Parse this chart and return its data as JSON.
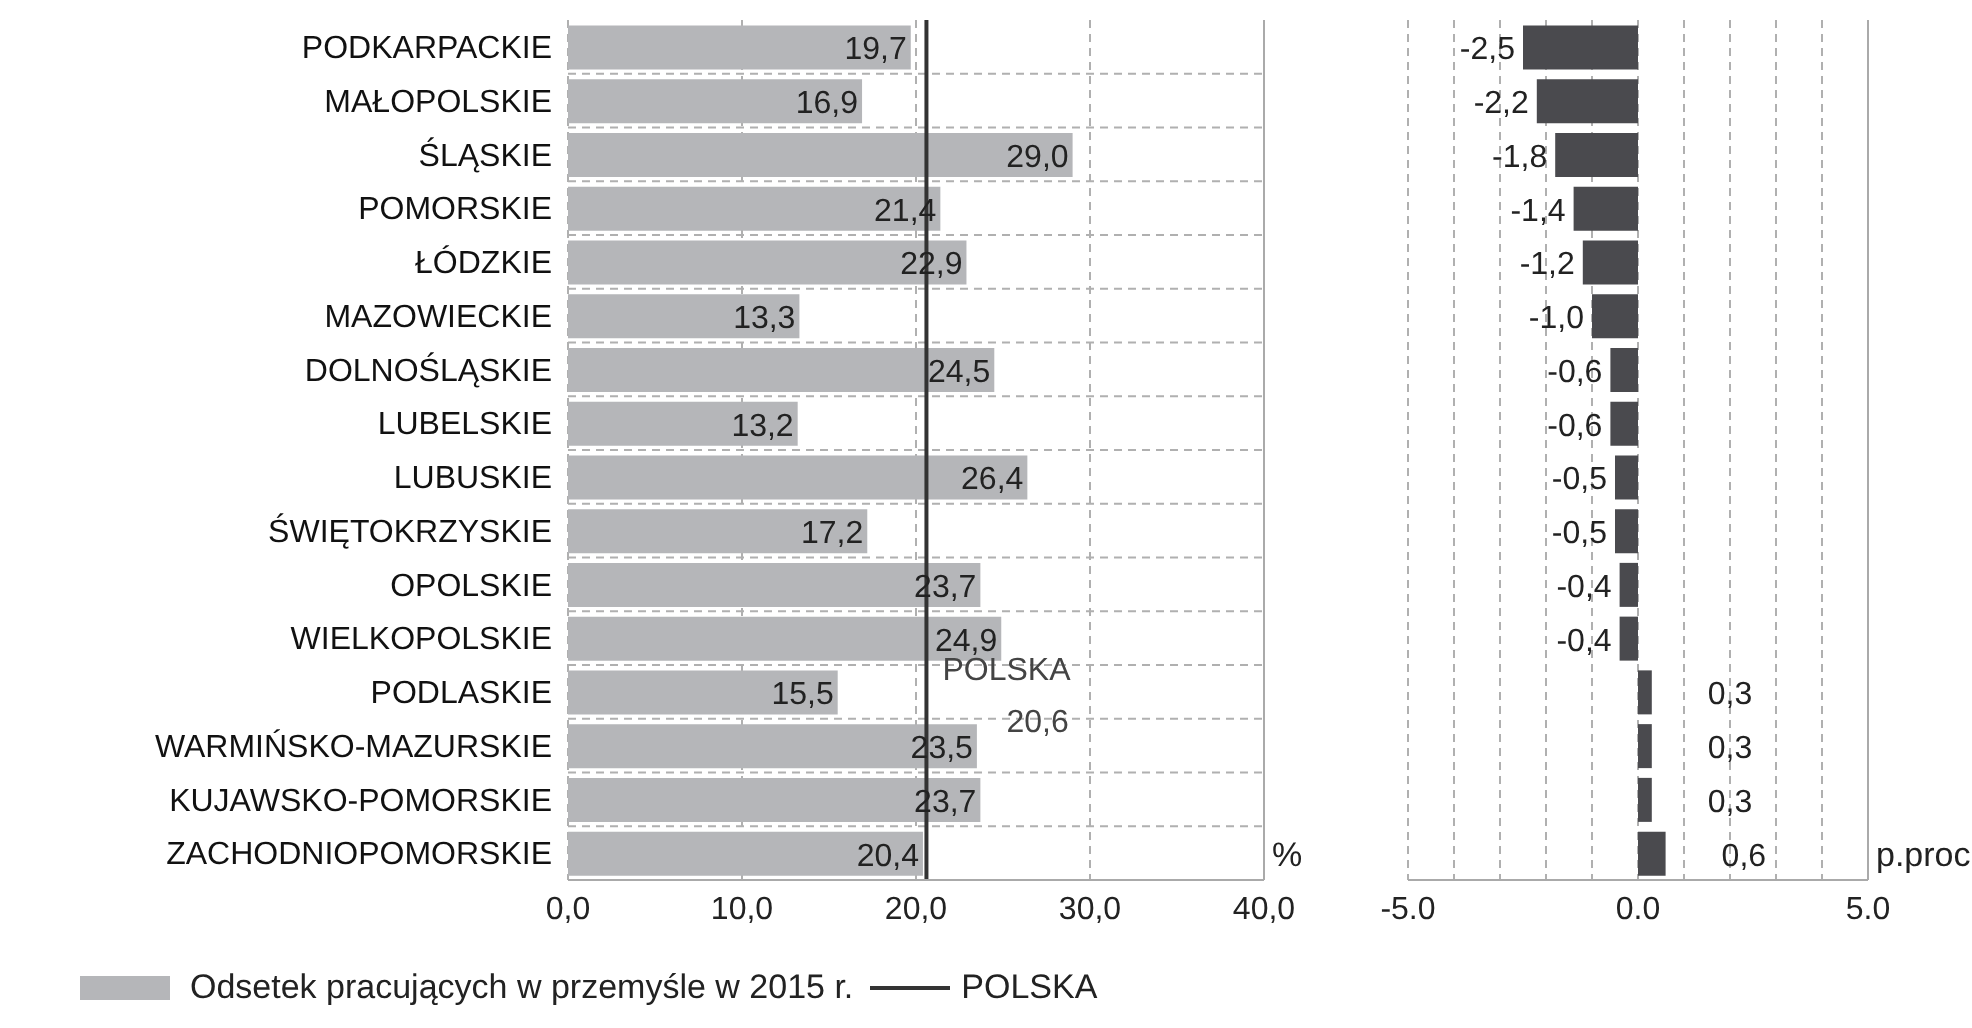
{
  "chart_data": [
    {
      "type": "bar",
      "orientation": "horizontal",
      "categories": [
        "PODKARPACKIE",
        "MAŁOPOLSKIE",
        "ŚLĄSKIE",
        "POMORSKIE",
        "ŁÓDZKIE",
        "MAZOWIECKIE",
        "DOLNOŚLĄSKIE",
        "LUBELSKIE",
        "LUBUSKIE",
        "ŚWIĘTOKRZYSKIE",
        "OPOLSKIE",
        "WIELKOPOLSKIE",
        "PODLASKIE",
        "WARMIŃSKO-MAZURSKIE",
        "KUJAWSKO-POMORSKIE",
        "ZACHODNIOPOMORSKIE"
      ],
      "series": [
        {
          "name": "Odsetek pracujących w przemyśle  w 2015 r.",
          "color": "#b5b6b9",
          "values": [
            19.7,
            16.9,
            29.0,
            21.4,
            22.9,
            13.3,
            24.5,
            13.2,
            26.4,
            17.2,
            23.7,
            24.9,
            15.5,
            23.5,
            23.7,
            20.4
          ],
          "value_labels": [
            "19,7",
            "16,9",
            "29,0",
            "21,4",
            "22,9",
            "13,3",
            "24,5",
            "13,2",
            "26,4",
            "17,2",
            "23,7",
            "24,9",
            "15,5",
            "23,5",
            "23,7",
            "20,4"
          ]
        }
      ],
      "xlim": [
        0,
        40
      ],
      "xticks": [
        {
          "value": 0,
          "label": "0,0"
        },
        {
          "value": 10,
          "label": "10,0"
        },
        {
          "value": 20,
          "label": "20,0"
        },
        {
          "value": 30,
          "label": "30,0"
        },
        {
          "value": 40,
          "label": "40,0"
        }
      ],
      "xlabel": "%",
      "grid": true,
      "legend": "bottom",
      "ref_lines": [
        {
          "axis": "x",
          "value": 20.6,
          "label": "POLSKA",
          "color": "#333333"
        }
      ],
      "annotations": [
        {
          "text": "20,6",
          "x": 20.6
        }
      ]
    },
    {
      "type": "bar",
      "orientation": "horizontal",
      "categories": [
        null,
        null,
        null,
        null,
        null,
        null,
        null,
        null,
        null,
        null,
        null,
        null,
        null,
        null,
        null,
        null
      ],
      "series": [
        {
          "color": "#4a4a4e",
          "values": [
            -2.5,
            -2.2,
            -1.8,
            -1.4,
            -1.2,
            -1.0,
            -0.6,
            -0.6,
            -0.5,
            -0.5,
            -0.4,
            -0.4,
            0.3,
            0.3,
            0.3,
            0.6
          ],
          "value_labels": [
            "-2,5",
            "-2,2",
            "-1,8",
            "-1,4",
            "-1,2",
            "-1,0",
            "-0,6",
            "-0,6",
            "-0,5",
            "-0,5",
            "-0,4",
            "-0,4",
            "0,3",
            "0,3",
            "0,3",
            "0,6"
          ]
        }
      ],
      "xlim": [
        -5,
        5
      ],
      "xticks": [
        {
          "value": -5,
          "label": "-5.0"
        },
        {
          "value": -4,
          "label": null
        },
        {
          "value": -3,
          "label": null
        },
        {
          "value": -2,
          "label": null
        },
        {
          "value": -1,
          "label": null
        },
        {
          "value": 0,
          "label": "0.0"
        },
        {
          "value": 1,
          "label": null
        },
        {
          "value": 2,
          "label": null
        },
        {
          "value": 3,
          "label": null
        },
        {
          "value": 4,
          "label": null
        },
        {
          "value": 5,
          "label": "5.0"
        }
      ],
      "xlabel": "p.proc",
      "grid": "x"
    }
  ]
}
